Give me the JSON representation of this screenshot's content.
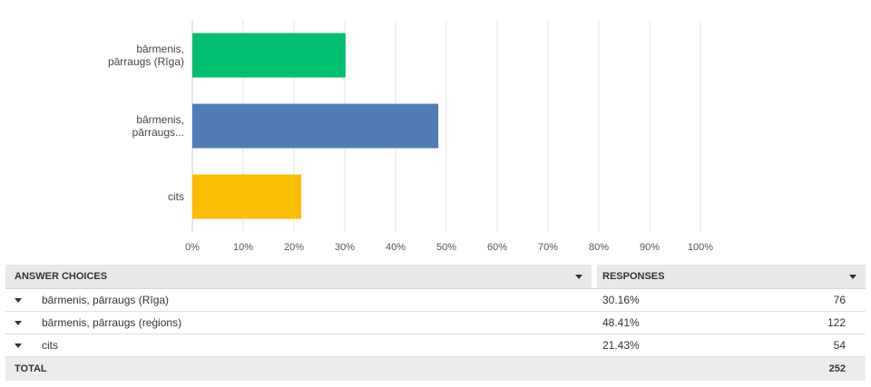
{
  "chart_data": {
    "type": "bar",
    "orientation": "horizontal",
    "categories": [
      [
        "bārmenis,",
        "pārraugs (Rīga)"
      ],
      [
        "bārmenis,",
        "pārraugs..."
      ],
      [
        "cits"
      ]
    ],
    "values": [
      30.16,
      48.41,
      21.43
    ],
    "colors": [
      "#00bf6f",
      "#507cb6",
      "#f9be00"
    ],
    "xlim": [
      0,
      100
    ],
    "xticks": [
      "0%",
      "10%",
      "20%",
      "30%",
      "40%",
      "50%",
      "60%",
      "70%",
      "80%",
      "90%",
      "100%"
    ],
    "grid": true
  },
  "table": {
    "header": {
      "choices_label": "ANSWER CHOICES",
      "responses_label": "RESPONSES"
    },
    "rows": [
      {
        "choice": "bārmenis, pārraugs (Rīga)",
        "percent": "30.16%",
        "count": "76"
      },
      {
        "choice": "bārmenis, pārraugs (reģions)",
        "percent": "48.41%",
        "count": "122"
      },
      {
        "choice": "cits",
        "percent": "21.43%",
        "count": "54"
      }
    ],
    "total": {
      "label": "TOTAL",
      "count": "252"
    }
  }
}
